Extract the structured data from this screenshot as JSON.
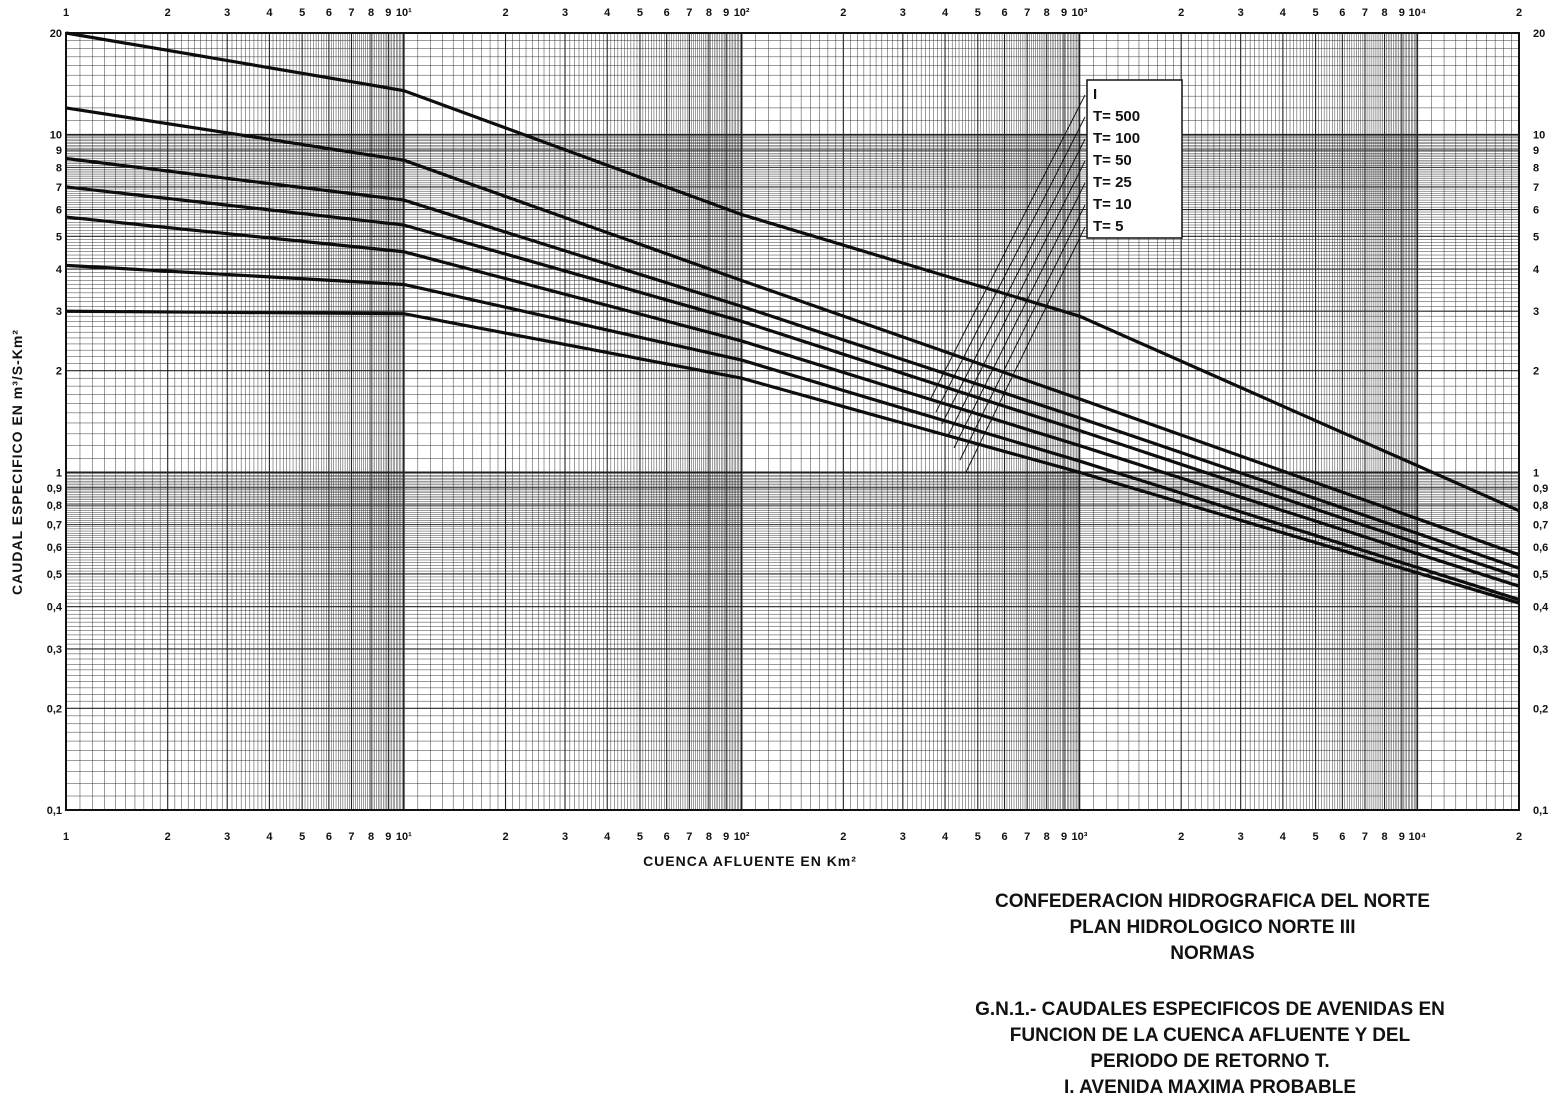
{
  "chart_data": {
    "type": "line",
    "title": "",
    "xlabel": "CUENCA AFLUENTE EN Km²",
    "ylabel": "CAUDAL ESPECIFICO EN m³/S-Km²",
    "xscale": "log",
    "yscale": "log",
    "xlim": [
      1,
      20000
    ],
    "ylim": [
      0.1,
      20
    ],
    "grid": true,
    "legend_placement": "top-right inside",
    "x_tick_labels": [
      {
        "x": 1,
        "label": "1"
      },
      {
        "x": 2,
        "label": "2"
      },
      {
        "x": 3,
        "label": "3"
      },
      {
        "x": 4,
        "label": "4"
      },
      {
        "x": 5,
        "label": "5"
      },
      {
        "x": 6,
        "label": "6"
      },
      {
        "x": 7,
        "label": "7"
      },
      {
        "x": 8,
        "label": "8"
      },
      {
        "x": 9,
        "label": "9"
      },
      {
        "x": 10,
        "label": "10¹"
      },
      {
        "x": 20,
        "label": "2"
      },
      {
        "x": 30,
        "label": "3"
      },
      {
        "x": 40,
        "label": "4"
      },
      {
        "x": 50,
        "label": "5"
      },
      {
        "x": 60,
        "label": "6"
      },
      {
        "x": 70,
        "label": "7"
      },
      {
        "x": 80,
        "label": "8"
      },
      {
        "x": 90,
        "label": "9"
      },
      {
        "x": 100,
        "label": "10²"
      },
      {
        "x": 200,
        "label": "2"
      },
      {
        "x": 300,
        "label": "3"
      },
      {
        "x": 400,
        "label": "4"
      },
      {
        "x": 500,
        "label": "5"
      },
      {
        "x": 600,
        "label": "6"
      },
      {
        "x": 700,
        "label": "7"
      },
      {
        "x": 800,
        "label": "8"
      },
      {
        "x": 900,
        "label": "9"
      },
      {
        "x": 1000,
        "label": "10³"
      },
      {
        "x": 2000,
        "label": "2"
      },
      {
        "x": 3000,
        "label": "3"
      },
      {
        "x": 4000,
        "label": "4"
      },
      {
        "x": 5000,
        "label": "5"
      },
      {
        "x": 6000,
        "label": "6"
      },
      {
        "x": 7000,
        "label": "7"
      },
      {
        "x": 8000,
        "label": "8"
      },
      {
        "x": 9000,
        "label": "9"
      },
      {
        "x": 10000,
        "label": "10⁴"
      },
      {
        "x": 20000,
        "label": "2"
      }
    ],
    "y_tick_labels": [
      {
        "y": 20,
        "label": "20"
      },
      {
        "y": 10,
        "label": "10"
      },
      {
        "y": 9,
        "label": "9"
      },
      {
        "y": 8,
        "label": "8"
      },
      {
        "y": 7,
        "label": "7"
      },
      {
        "y": 6,
        "label": "6"
      },
      {
        "y": 5,
        "label": "5"
      },
      {
        "y": 4,
        "label": "4"
      },
      {
        "y": 3,
        "label": "3"
      },
      {
        "y": 2,
        "label": "2"
      },
      {
        "y": 1,
        "label": "1"
      },
      {
        "y": 0.9,
        "label": "0,9"
      },
      {
        "y": 0.8,
        "label": "0,8"
      },
      {
        "y": 0.7,
        "label": "0,7"
      },
      {
        "y": 0.6,
        "label": "0,6"
      },
      {
        "y": 0.5,
        "label": "0,5"
      },
      {
        "y": 0.4,
        "label": "0,4"
      },
      {
        "y": 0.3,
        "label": "0,3"
      },
      {
        "y": 0.2,
        "label": "0,2"
      },
      {
        "y": 0.1,
        "label": "0,1"
      }
    ],
    "series": [
      {
        "name": "I",
        "points": [
          [
            1,
            20
          ],
          [
            10,
            13.5
          ],
          [
            100,
            5.8
          ],
          [
            1000,
            2.9
          ],
          [
            20000,
            0.77
          ]
        ]
      },
      {
        "name": "T= 500",
        "points": [
          [
            1,
            12
          ],
          [
            10,
            8.4
          ],
          [
            100,
            3.7
          ],
          [
            1000,
            1.65
          ],
          [
            20000,
            0.57
          ]
        ]
      },
      {
        "name": "T= 100",
        "points": [
          [
            1,
            8.5
          ],
          [
            10,
            6.4
          ],
          [
            100,
            3.1
          ],
          [
            1000,
            1.45
          ],
          [
            20000,
            0.52
          ]
        ]
      },
      {
        "name": "T= 50",
        "points": [
          [
            1,
            7
          ],
          [
            10,
            5.4
          ],
          [
            100,
            2.8
          ],
          [
            1000,
            1.33
          ],
          [
            20000,
            0.49
          ]
        ]
      },
      {
        "name": "T= 25",
        "points": [
          [
            1,
            5.7
          ],
          [
            10,
            4.5
          ],
          [
            100,
            2.45
          ],
          [
            1000,
            1.2
          ],
          [
            20000,
            0.46
          ]
        ]
      },
      {
        "name": "T= 10",
        "points": [
          [
            1,
            4.1
          ],
          [
            10,
            3.6
          ],
          [
            100,
            2.15
          ],
          [
            1000,
            1.08
          ],
          [
            20000,
            0.42
          ]
        ]
      },
      {
        "name": "T= 5",
        "points": [
          [
            1,
            3
          ],
          [
            10,
            2.95
          ],
          [
            100,
            1.9
          ],
          [
            1000,
            1.0
          ],
          [
            20000,
            0.41
          ]
        ]
      }
    ]
  },
  "caption": {
    "org_line1": "CONFEDERACION HIDROGRAFICA DEL NORTE",
    "org_line2": "PLAN HIDROLOGICO NORTE III",
    "org_line3": "NORMAS",
    "fig_line1": "G.N.1.- CAUDALES ESPECIFICOS DE AVENIDAS EN",
    "fig_line2": "FUNCION DE LA CUENCA AFLUENTE Y DEL",
    "fig_line3": "PERIODO DE RETORNO T.",
    "fig_line4": "I. AVENIDA MAXIMA PROBABLE"
  }
}
